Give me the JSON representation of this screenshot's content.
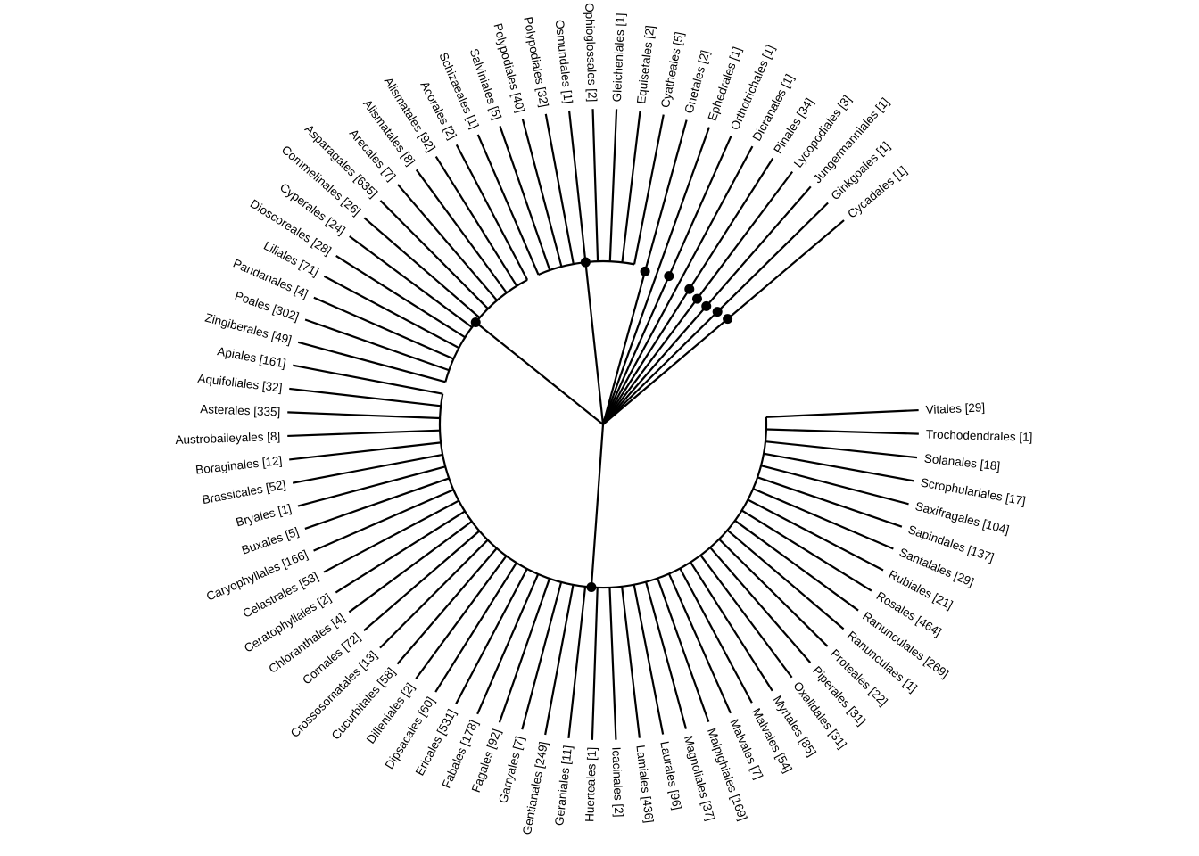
{
  "tree": {
    "type": "circular-phylogeny",
    "line_color": "#000000",
    "clades": [
      {
        "name": "angiosperms-lower",
        "has_node_dot": true,
        "tips": [
          "Vitales [29]",
          "Trochodendrales [1]",
          "Solanales [18]",
          "Scrophulariales [17]",
          "Saxifragales [104]",
          "Sapindales [137]",
          "Santalales [29]",
          "Rubiales [21]",
          "Rosales [464]",
          "Ranunculales [269]",
          "Ranunculaes [1]",
          "Proteales [22]",
          "Piperales [31]",
          "Oxalidales [31]",
          "Myrtales [85]",
          "Malvales [54]",
          "Malvales  [7]",
          "Malpighiales [169]",
          "Magnoliales [37]",
          "Laurales [96]",
          "Lamiales [436]",
          "Icacinales [2]",
          "Huerteales [1]",
          "Geraniales [11]",
          "Gentianales [249]",
          "Garryales [7]",
          "Fagales [92]",
          "Fabales [178]",
          "Ericales [531]",
          "Dipsacales [60]",
          "Dilleniales [2]",
          "Cucurbitales [58]",
          "Crossosomatales [13]",
          "Cornales [72]",
          "Chloranthales [4]",
          "Ceratophyllales [2]",
          "Celastrales [53]",
          "Caryophyllales [166]",
          "Buxales [5]",
          "Bryales [1]",
          "Brassicales [52]",
          "Boraginales [12]",
          "Austrobaileyales [8]",
          "Asterales [335]",
          "Aquifoliales [32]",
          "Apiales [161]"
        ]
      },
      {
        "name": "monocots",
        "has_node_dot": true,
        "tips": [
          "Zingiberales [49]",
          "Poales [302]",
          "Pandanales [4]",
          "Liliales [71]",
          "Dioscoreales [28]",
          "Cyperales [24]",
          "Commelinales [26]",
          "Asparagales [635]",
          "Arecales [7]",
          "Alismatales [8]",
          "Alismatales [92]",
          "Acorales [2]"
        ]
      },
      {
        "name": "ferns",
        "has_node_dot": true,
        "tips": [
          "Schizaeales [1]",
          "Salviniales [5]",
          "Polypodiales [40]",
          "Polypodiales  [32]",
          "Osmundales [1]",
          "Ophioglossales [2]",
          "Gleicheniales [1]",
          "Equisetales  [2]",
          "Cyatheales [5]"
        ]
      },
      {
        "name": "single",
        "has_node_dot": true,
        "tips": [
          "Gnetales [2]"
        ]
      },
      {
        "name": "single",
        "has_node_dot": false,
        "tips": [
          "Ephedrales [1]"
        ]
      },
      {
        "name": "single",
        "has_node_dot": true,
        "tips": [
          "Orthotrichales [1]"
        ]
      },
      {
        "name": "single",
        "has_node_dot": false,
        "tips": [
          "Dicranales [1]"
        ]
      },
      {
        "name": "single",
        "has_node_dot": true,
        "tips": [
          "Pinales [34]"
        ]
      },
      {
        "name": "single",
        "has_node_dot": true,
        "tips": [
          "Lycopodiales [3]"
        ]
      },
      {
        "name": "single",
        "has_node_dot": true,
        "tips": [
          "Jungermanniales [1]"
        ]
      },
      {
        "name": "single",
        "has_node_dot": true,
        "tips": [
          "Ginkgoales  [1]"
        ]
      },
      {
        "name": "single",
        "has_node_dot": true,
        "tips": [
          "Cycadales [1]"
        ]
      }
    ]
  }
}
